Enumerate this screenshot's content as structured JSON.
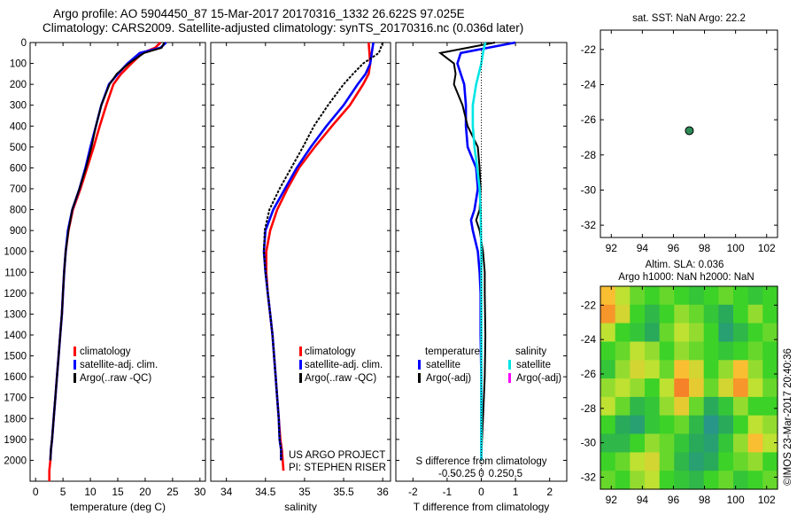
{
  "header": {
    "line1": "Argo profile: AO 5904450_87 15-Mar-2017 20170316_1332 26.622S 97.025E",
    "line2": "Climatology: CARS2009. Satellite-adjusted climatology: synTS_20170316.nc (0.036d later)"
  },
  "side_text": "©IMOS 23-Mar-2017 20:40:36",
  "colors": {
    "climatology": "#ff0000",
    "satellite": "#0000ff",
    "argo": "#000000",
    "salinity_satellite": "#00e5e5",
    "salinity_argo": "#ff00ff",
    "float_marker": "#2e8b57"
  },
  "chart_data": [
    {
      "type": "line",
      "id": "temperature",
      "xlabel": "temperature (deg C)",
      "ylabel": "",
      "xlim": [
        -1,
        31
      ],
      "ylim": [
        2100,
        0
      ],
      "xticks": [
        0,
        5,
        10,
        15,
        20,
        25,
        30
      ],
      "yticks": [
        0,
        100,
        200,
        300,
        400,
        500,
        600,
        700,
        800,
        900,
        1000,
        1100,
        1200,
        1300,
        1400,
        1500,
        1600,
        1700,
        1800,
        1900,
        2000
      ],
      "legend": [
        "climatology",
        "satellite-adj. clim.",
        "Argo(..raw -QC)"
      ],
      "series": [
        {
          "name": "climatology",
          "color": "#ff0000",
          "x": [
            22.8,
            21.8,
            19.5,
            17.5,
            15.6,
            14.2,
            12.9,
            11.7,
            10.6,
            9.4,
            8.2,
            6.8,
            6.0,
            5.5,
            5.2,
            5.0,
            4.8,
            4.5,
            4.2,
            3.9,
            3.6,
            3.3,
            3.0,
            2.8,
            2.7,
            2.5,
            2.5
          ],
          "y": [
            0,
            25,
            50,
            100,
            150,
            200,
            300,
            400,
            500,
            600,
            700,
            800,
            900,
            1000,
            1100,
            1200,
            1300,
            1400,
            1500,
            1600,
            1700,
            1800,
            1900,
            1950,
            2000,
            2050,
            2100
          ]
        },
        {
          "name": "satellite-adj. clim.",
          "color": "#0000ff",
          "x": [
            23.8,
            22.8,
            19.0,
            16.8,
            15.0,
            13.4,
            12.0,
            11.0,
            10.0,
            9.1,
            8.0,
            6.7,
            5.9,
            5.5,
            5.2,
            5.0,
            4.8,
            4.5,
            4.2,
            3.9,
            3.6,
            3.3,
            3.0,
            2.8,
            2.7
          ],
          "y": [
            0,
            25,
            50,
            100,
            150,
            200,
            300,
            400,
            500,
            600,
            700,
            800,
            900,
            1000,
            1100,
            1200,
            1300,
            1400,
            1500,
            1600,
            1700,
            1800,
            1900,
            1950,
            2000
          ]
        },
        {
          "name": "Argo(..raw -QC)",
          "color": "#000000",
          "x": [
            23.5,
            23.0,
            19.8,
            17.0,
            14.8,
            13.5,
            12.0,
            11.0,
            10.2,
            9.2,
            8.0,
            6.7,
            6.0,
            5.5,
            5.2,
            5.0,
            4.8,
            4.5,
            4.2,
            3.9,
            3.6,
            3.3,
            3.0,
            2.8,
            2.7
          ],
          "y": [
            0,
            25,
            50,
            100,
            150,
            200,
            300,
            400,
            500,
            600,
            700,
            800,
            900,
            1000,
            1100,
            1200,
            1300,
            1400,
            1500,
            1600,
            1700,
            1800,
            1900,
            1950,
            2000
          ]
        }
      ]
    },
    {
      "type": "line",
      "id": "salinity",
      "xlabel": "salinity",
      "ylabel": "",
      "xlim": [
        33.8,
        36.1
      ],
      "ylim": [
        2100,
        0
      ],
      "xticks": [
        34,
        34.5,
        35,
        35.5,
        36
      ],
      "xticklabels": [
        "34",
        "34.5",
        "35",
        "35.5",
        "36"
      ],
      "legend": [
        "climatology",
        "satellite-adj. clim.",
        "Argo(..raw -QC)"
      ],
      "annotation": [
        "US ARGO PROJECT",
        "PI: STEPHEN RISER"
      ],
      "series": [
        {
          "name": "climatology",
          "color": "#ff0000",
          "x": [
            35.82,
            35.83,
            35.84,
            35.82,
            35.75,
            35.58,
            35.35,
            35.13,
            34.93,
            34.78,
            34.65,
            34.56,
            34.51,
            34.51,
            34.53,
            34.56,
            34.59,
            34.61,
            34.63,
            34.65,
            34.67,
            34.69,
            34.71,
            34.72,
            34.73
          ],
          "y": [
            0,
            50,
            100,
            150,
            200,
            300,
            400,
            500,
            600,
            700,
            800,
            900,
            1000,
            1100,
            1200,
            1300,
            1400,
            1500,
            1600,
            1700,
            1800,
            1900,
            1950,
            2000,
            2050
          ]
        },
        {
          "name": "satellite-adj. clim.",
          "color": "#0000ff",
          "x": [
            35.88,
            35.86,
            35.84,
            35.78,
            35.68,
            35.5,
            35.28,
            35.08,
            34.9,
            34.75,
            34.6,
            34.5,
            34.48,
            34.5,
            34.53,
            34.56,
            34.59,
            34.61,
            34.63,
            34.65,
            34.67,
            34.68,
            34.7,
            34.7
          ],
          "y": [
            0,
            50,
            100,
            150,
            200,
            300,
            400,
            500,
            600,
            700,
            800,
            900,
            1000,
            1100,
            1200,
            1300,
            1400,
            1500,
            1600,
            1700,
            1800,
            1900,
            1950,
            2000
          ]
        },
        {
          "name": "Argo(..raw -QC)",
          "color": "#000000",
          "x": [
            36.0,
            35.95,
            35.75,
            35.62,
            35.5,
            35.3,
            35.12,
            34.98,
            34.83,
            34.68,
            34.55,
            34.49,
            34.48,
            34.5,
            34.53,
            34.56,
            34.59,
            34.61,
            34.63,
            34.65,
            34.67,
            34.68,
            34.7,
            34.7
          ],
          "y": [
            0,
            50,
            100,
            150,
            200,
            300,
            400,
            500,
            600,
            700,
            800,
            900,
            1000,
            1100,
            1200,
            1300,
            1400,
            1500,
            1600,
            1700,
            1800,
            1900,
            1950,
            2000
          ]
        }
      ]
    },
    {
      "type": "line",
      "id": "difference",
      "xlabel": "T difference from climatology",
      "xlabel2": "S difference from climatology",
      "xlim": [
        -2.5,
        2.5
      ],
      "ylim": [
        2100,
        0
      ],
      "xticks": [
        -2,
        -1,
        0,
        1,
        2
      ],
      "xticklabels": [
        "-2",
        "-1",
        "0",
        "1",
        "2"
      ],
      "xticks_top": [
        -1.0,
        -0.5,
        0,
        0.5,
        1.0
      ],
      "xticklabels_top": [
        "-0.5",
        "-0.25",
        "0",
        "0.25",
        "0.5"
      ],
      "legend_temperature_title": "temperature",
      "legend_salinity_title": "salinity",
      "legend_temperature": [
        "satellite",
        "Argo(-adj)"
      ],
      "legend_salinity": [
        "satellite",
        "Argo(-adj)"
      ],
      "series": [
        {
          "name": "satellite",
          "group": "temperature",
          "color": "#0000ff",
          "x": [
            1.0,
            0.2,
            -0.6,
            -0.7,
            -0.6,
            -0.5,
            -0.45,
            -0.45,
            -0.4,
            -0.15,
            -0.1,
            -0.2,
            -0.3,
            -0.25,
            -0.1,
            -0.05,
            -0.02,
            -0.02,
            0.0,
            0.0,
            0.0,
            0.0
          ],
          "y": [
            0,
            25,
            50,
            100,
            150,
            200,
            300,
            400,
            500,
            600,
            700,
            800,
            850,
            900,
            1000,
            1100,
            1200,
            1400,
            1600,
            1800,
            1900,
            2000
          ]
        },
        {
          "name": "Argo(-adj)",
          "group": "temperature",
          "color": "#000000",
          "x": [
            0.4,
            -0.4,
            -1.2,
            -0.8,
            -0.75,
            -0.8,
            -0.55,
            -0.4,
            -0.1,
            -0.05,
            -0.02,
            -0.05,
            -0.15,
            -0.05,
            0.05,
            0.1,
            0.1,
            0.12,
            0.1,
            0.05,
            0.02,
            0.0
          ],
          "y": [
            0,
            25,
            50,
            100,
            150,
            200,
            300,
            400,
            500,
            600,
            700,
            800,
            850,
            900,
            1000,
            1100,
            1200,
            1400,
            1600,
            1800,
            1900,
            2000
          ]
        },
        {
          "name": "satellite",
          "group": "salinity",
          "color": "#00e5e5",
          "x": [
            0.12,
            0.05,
            0.0,
            -0.15,
            -0.25,
            -0.25,
            -0.2,
            -0.12,
            -0.05,
            -0.02,
            0.0,
            0.0,
            0.0,
            0.0,
            0.0,
            0.0
          ],
          "y": [
            0,
            50,
            100,
            200,
            300,
            400,
            500,
            600,
            700,
            800,
            1000,
            1200,
            1400,
            1600,
            1800,
            2000
          ]
        }
      ]
    },
    {
      "type": "scatter",
      "id": "location-map",
      "title": "sat. SST: NaN Argo: 22.2",
      "xlim": [
        91.3,
        102.7
      ],
      "ylim": [
        -32.7,
        -20.9
      ],
      "xticks": [
        92,
        94,
        96,
        98,
        100,
        102
      ],
      "yticks": [
        -22,
        -24,
        -26,
        -28,
        -30,
        -32
      ],
      "points": [
        {
          "x": 97.025,
          "y": -26.622
        }
      ]
    },
    {
      "type": "heatmap",
      "id": "sla-map",
      "title": "Altim. SLA: 0.036",
      "subtitle": "Argo h1000: NaN h2000: NaN",
      "xlim": [
        91.3,
        102.7
      ],
      "ylim": [
        -32.7,
        -20.9
      ],
      "xticks": [
        92,
        94,
        96,
        98,
        100,
        102
      ],
      "yticks": [
        -22,
        -24,
        -26,
        -28,
        -30,
        -32
      ],
      "values": [
        [
          0.6,
          0.3,
          0.1,
          0.0,
          0.1,
          0.0,
          -0.1,
          0.0,
          0.1,
          0.0,
          -0.1,
          0.0
        ],
        [
          0.8,
          0.4,
          0.0,
          -0.2,
          0.0,
          0.2,
          0.1,
          -0.1,
          -0.3,
          0.0,
          0.2,
          0.0
        ],
        [
          0.3,
          0.0,
          -0.1,
          -0.3,
          0.1,
          0.3,
          0.2,
          0.0,
          -0.4,
          -0.2,
          0.0,
          0.1
        ],
        [
          0.0,
          0.1,
          0.3,
          0.2,
          0.0,
          0.2,
          0.1,
          0.0,
          -0.1,
          0.0,
          0.1,
          0.0
        ],
        [
          -0.1,
          0.2,
          0.4,
          0.3,
          0.1,
          0.6,
          0.4,
          0.0,
          0.2,
          0.6,
          0.2,
          0.0
        ],
        [
          0.2,
          0.3,
          0.2,
          0.0,
          0.3,
          0.9,
          0.5,
          0.1,
          0.4,
          0.8,
          0.3,
          0.1
        ],
        [
          0.3,
          0.1,
          -0.2,
          -0.1,
          0.2,
          0.5,
          0.1,
          -0.3,
          -0.1,
          0.2,
          0.0,
          0.0
        ],
        [
          0.0,
          -0.3,
          -0.4,
          -0.1,
          0.0,
          0.1,
          -0.2,
          -0.5,
          -0.3,
          0.0,
          0.3,
          0.2
        ],
        [
          -0.2,
          -0.2,
          0.0,
          0.2,
          0.1,
          -0.1,
          -0.3,
          -0.4,
          -0.1,
          0.2,
          0.6,
          0.3
        ],
        [
          0.0,
          0.1,
          0.3,
          0.4,
          0.1,
          -0.2,
          -0.4,
          -0.3,
          0.0,
          0.1,
          0.2,
          0.0
        ],
        [
          0.1,
          0.0,
          0.2,
          0.3,
          0.0,
          -0.1,
          -0.2,
          0.0,
          0.1,
          -0.1,
          0.0,
          0.1
        ]
      ]
    }
  ]
}
